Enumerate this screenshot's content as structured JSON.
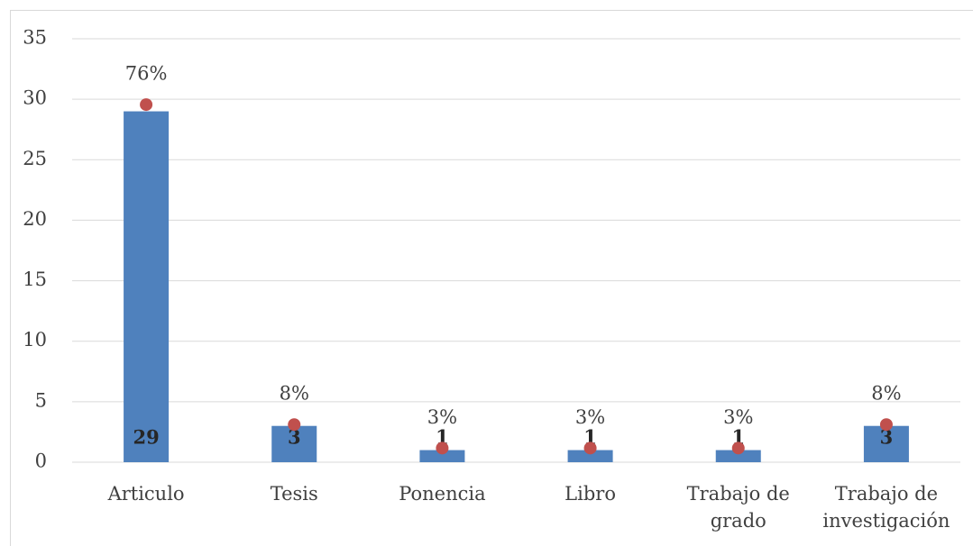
{
  "chart_data": {
    "type": "bar",
    "categories": [
      "Articulo",
      "Tesis",
      "Ponencia",
      "Libro",
      "Trabajo de grado",
      "Trabajo de investigación"
    ],
    "series": [
      {
        "type": "bar",
        "color": "#4f81bd",
        "values": [
          29,
          3,
          1,
          1,
          1,
          3
        ]
      },
      {
        "type": "scatter",
        "axis": "y2",
        "color": "#c0504d",
        "values": [
          76,
          8,
          3,
          3,
          3,
          8
        ],
        "value_labels": [
          "76%",
          "8%",
          "3%",
          "3%",
          "3%",
          "8%"
        ]
      }
    ],
    "ylim": [
      0,
      35
    ],
    "yticks": [
      0,
      5,
      10,
      15,
      20,
      25,
      30,
      35
    ],
    "y2lim": [
      0,
      90
    ],
    "grid": true
  }
}
